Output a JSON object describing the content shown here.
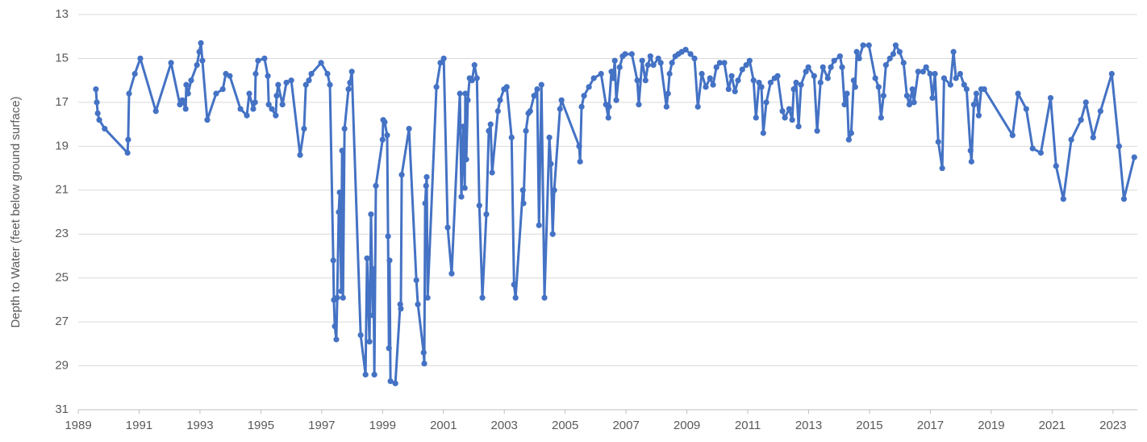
{
  "chart_data": {
    "type": "line",
    "y_label": "Depth to Water (feet below ground surface)",
    "color": "#4472c4",
    "x": [
      1989.58,
      1989.61,
      1989.64,
      1989.69,
      1989.87,
      1990.62,
      1990.64,
      1990.67,
      1990.86,
      1991.04,
      1991.55,
      1992.05,
      1992.34,
      1992.42,
      1992.53,
      1992.55,
      1992.61,
      1992.71,
      1992.9,
      1992.98,
      1993.03,
      1993.08,
      1993.24,
      1993.53,
      1993.75,
      1993.85,
      1993.98,
      1994.33,
      1994.54,
      1994.62,
      1994.75,
      1994.81,
      1994.83,
      1994.91,
      1995.12,
      1995.23,
      1995.26,
      1995.36,
      1995.49,
      1995.52,
      1995.57,
      1995.71,
      1995.84,
      1996.0,
      1996.29,
      1996.42,
      1996.48,
      1996.58,
      1996.66,
      1996.98,
      1997.19,
      1997.27,
      1997.38,
      1997.4,
      1997.43,
      1997.48,
      1997.51,
      1997.56,
      1997.59,
      1997.62,
      1997.64,
      1997.67,
      1997.7,
      1997.75,
      1997.88,
      1997.93,
      1997.99,
      1998.28,
      1998.44,
      1998.49,
      1998.57,
      1998.62,
      1998.68,
      1998.7,
      1998.73,
      1998.78,
      1999.0,
      1999.02,
      1999.07,
      1999.15,
      1999.18,
      1999.21,
      1999.23,
      1999.26,
      1999.42,
      1999.58,
      1999.6,
      1999.63,
      1999.87,
      2000.11,
      2000.16,
      2000.35,
      2000.37,
      2000.4,
      2000.43,
      2000.45,
      2000.48,
      2000.77,
      2000.9,
      2001.01,
      2001.14,
      2001.27,
      2001.54,
      2001.59,
      2001.65,
      2001.7,
      2001.72,
      2001.75,
      2001.8,
      2001.86,
      2001.94,
      2002.02,
      2002.1,
      2002.18,
      2002.28,
      2002.41,
      2002.49,
      2002.55,
      2002.6,
      2002.79,
      2002.86,
      2002.99,
      2003.08,
      2003.24,
      2003.32,
      2003.37,
      2003.61,
      2003.63,
      2003.71,
      2003.79,
      2003.85,
      2003.98,
      2004.08,
      2004.14,
      2004.22,
      2004.32,
      2004.48,
      2004.53,
      2004.59,
      2004.64,
      2004.83,
      2004.88,
      2005.46,
      2005.49,
      2005.54,
      2005.62,
      2005.78,
      2005.94,
      2006.18,
      2006.34,
      2006.42,
      2006.44,
      2006.52,
      2006.58,
      2006.63,
      2006.68,
      2006.79,
      2006.89,
      2006.97,
      2007.19,
      2007.37,
      2007.42,
      2007.53,
      2007.64,
      2007.72,
      2007.8,
      2007.9,
      2008.06,
      2008.14,
      2008.33,
      2008.38,
      2008.43,
      2008.51,
      2008.62,
      2008.72,
      2008.83,
      2008.96,
      2009.12,
      2009.25,
      2009.36,
      2009.49,
      2009.62,
      2009.76,
      2009.86,
      2009.97,
      2010.08,
      2010.23,
      2010.37,
      2010.47,
      2010.58,
      2010.68,
      2010.82,
      2010.95,
      2011.06,
      2011.19,
      2011.27,
      2011.37,
      2011.45,
      2011.51,
      2011.61,
      2011.75,
      2011.88,
      2011.98,
      2012.14,
      2012.22,
      2012.36,
      2012.46,
      2012.51,
      2012.59,
      2012.67,
      2012.75,
      2012.91,
      2012.99,
      2013.18,
      2013.28,
      2013.39,
      2013.47,
      2013.63,
      2013.73,
      2013.84,
      2014.03,
      2014.1,
      2014.18,
      2014.26,
      2014.32,
      2014.4,
      2014.48,
      2014.53,
      2014.58,
      2014.66,
      2014.79,
      2014.98,
      2015.19,
      2015.3,
      2015.38,
      2015.46,
      2015.54,
      2015.67,
      2015.78,
      2015.86,
      2015.99,
      2016.12,
      2016.23,
      2016.31,
      2016.41,
      2016.46,
      2016.6,
      2016.76,
      2016.86,
      2016.99,
      2017.07,
      2017.15,
      2017.26,
      2017.39,
      2017.45,
      2017.66,
      2017.76,
      2017.84,
      2017.98,
      2018.11,
      2018.19,
      2018.32,
      2018.35,
      2018.43,
      2018.51,
      2018.59,
      2018.67,
      2018.77,
      2019.7,
      2019.88,
      2020.15,
      2020.36,
      2020.63,
      2020.95,
      2021.13,
      2021.37,
      2021.63,
      2021.95,
      2022.11,
      2022.35,
      2022.59,
      2022.96,
      2023.2,
      2023.36,
      2023.7
    ],
    "values": [
      16.4,
      17.0,
      17.5,
      17.8,
      18.2,
      19.3,
      18.7,
      16.6,
      15.7,
      15.0,
      17.4,
      15.2,
      17.1,
      16.9,
      17.3,
      16.2,
      16.6,
      16.0,
      15.3,
      14.7,
      14.3,
      15.1,
      17.8,
      16.6,
      16.4,
      15.7,
      15.8,
      17.3,
      17.6,
      16.6,
      17.3,
      17.0,
      15.7,
      15.1,
      15.0,
      15.8,
      17.1,
      17.3,
      17.6,
      16.7,
      16.2,
      17.1,
      16.1,
      16.0,
      19.4,
      18.2,
      16.2,
      16.0,
      15.7,
      15.2,
      15.7,
      16.2,
      24.2,
      26.0,
      27.2,
      27.8,
      25.9,
      22.0,
      21.1,
      23.5,
      25.6,
      19.2,
      25.9,
      18.2,
      16.4,
      16.1,
      15.6,
      27.6,
      29.4,
      24.1,
      27.9,
      22.1,
      26.7,
      24.6,
      29.4,
      20.8,
      18.7,
      17.8,
      17.9,
      18.5,
      23.1,
      28.2,
      24.2,
      29.7,
      29.8,
      26.2,
      26.4,
      20.3,
      18.2,
      25.1,
      26.2,
      28.4,
      28.9,
      21.6,
      20.8,
      20.4,
      25.9,
      16.3,
      15.2,
      15.0,
      22.7,
      24.8,
      16.6,
      21.3,
      18.1,
      20.9,
      16.6,
      19.6,
      16.9,
      15.9,
      16.0,
      15.3,
      15.9,
      21.7,
      25.9,
      22.1,
      18.3,
      18.0,
      20.2,
      17.4,
      16.9,
      16.4,
      16.3,
      18.6,
      25.3,
      25.9,
      21.0,
      21.6,
      18.3,
      17.5,
      17.4,
      16.7,
      16.4,
      22.6,
      16.2,
      25.9,
      18.6,
      19.8,
      23.0,
      21.0,
      17.3,
      16.9,
      19.0,
      19.7,
      17.2,
      16.7,
      16.3,
      15.9,
      15.7,
      17.1,
      17.7,
      17.2,
      15.6,
      15.9,
      15.1,
      16.9,
      15.4,
      14.9,
      14.8,
      14.8,
      16.0,
      17.1,
      15.1,
      16.0,
      15.3,
      14.9,
      15.3,
      15.0,
      15.2,
      17.2,
      16.6,
      15.7,
      15.2,
      14.9,
      14.8,
      14.7,
      14.6,
      14.8,
      15.0,
      17.2,
      15.7,
      16.3,
      15.9,
      16.2,
      15.4,
      15.2,
      15.2,
      16.4,
      15.8,
      16.5,
      16.0,
      15.5,
      15.3,
      15.1,
      16.0,
      17.7,
      16.1,
      16.3,
      18.4,
      17.0,
      16.1,
      15.9,
      15.8,
      17.4,
      17.7,
      17.3,
      17.8,
      16.4,
      16.1,
      18.1,
      16.2,
      15.6,
      15.4,
      15.8,
      18.3,
      16.1,
      15.4,
      15.9,
      15.4,
      15.1,
      14.9,
      15.4,
      17.1,
      16.6,
      18.7,
      18.4,
      16.0,
      16.3,
      14.7,
      15.0,
      14.4,
      14.4,
      15.9,
      16.3,
      17.7,
      16.7,
      15.3,
      15.0,
      14.8,
      14.4,
      14.7,
      15.2,
      16.7,
      17.1,
      16.4,
      17.0,
      15.6,
      15.6,
      15.4,
      15.7,
      16.8,
      15.7,
      18.8,
      20.0,
      15.9,
      16.2,
      14.7,
      15.9,
      15.7,
      16.2,
      16.4,
      19.2,
      19.7,
      17.1,
      16.6,
      17.6,
      16.4,
      16.4,
      18.5,
      16.6,
      17.3,
      19.1,
      19.3,
      16.8,
      19.9,
      21.4,
      18.7,
      17.8,
      17.0,
      18.6,
      17.4,
      15.7,
      19.0,
      21.4,
      19.5
    ],
    "xlim": [
      1989,
      2023.8
    ],
    "xticks": [
      1989,
      1991,
      1993,
      1995,
      1997,
      1999,
      2001,
      2003,
      2005,
      2007,
      2009,
      2011,
      2013,
      2015,
      2017,
      2019,
      2021,
      2023
    ],
    "ylim": [
      13,
      31
    ],
    "yticks": [
      13,
      15,
      17,
      19,
      21,
      23,
      25,
      27,
      29,
      31
    ],
    "y_inverted": true,
    "grid": true
  }
}
